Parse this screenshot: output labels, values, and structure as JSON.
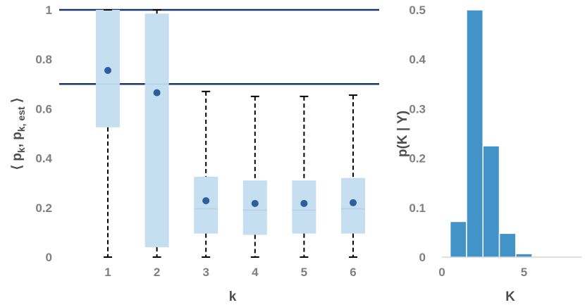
{
  "chart_data": [
    {
      "type": "box",
      "xlabel": "k",
      "ylabel_parts": [
        "⟨ p",
        "k",
        ", p",
        "k, est",
        " ⟩"
      ],
      "categories": [
        "1",
        "2",
        "3",
        "4",
        "5",
        "6"
      ],
      "ylim": [
        0,
        1.0
      ],
      "yticks": [
        0,
        0.2,
        0.4,
        0.6,
        0.8,
        1
      ],
      "ytick_labels": [
        "0",
        "0.2",
        "0.4",
        "0.6",
        "0.8",
        "1"
      ],
      "reference_lines": [
        1.0,
        0.7
      ],
      "boxes": [
        {
          "k": "1",
          "whisker_low": 0.0,
          "q1": 0.525,
          "median": 0.7,
          "q3": 1.0,
          "whisker_high": 1.0,
          "mean": 0.755
        },
        {
          "k": "2",
          "whisker_low": 0.0,
          "q1": 0.04,
          "median": 0.7,
          "q3": 0.985,
          "whisker_high": 1.0,
          "mean": 0.665
        },
        {
          "k": "3",
          "whisker_low": 0.0,
          "q1": 0.095,
          "median": 0.195,
          "q3": 0.325,
          "whisker_high": 0.67,
          "mean": 0.228
        },
        {
          "k": "4",
          "whisker_low": 0.0,
          "q1": 0.09,
          "median": 0.19,
          "q3": 0.31,
          "whisker_high": 0.65,
          "mean": 0.217
        },
        {
          "k": "5",
          "whisker_low": 0.0,
          "q1": 0.095,
          "median": 0.19,
          "q3": 0.31,
          "whisker_high": 0.65,
          "mean": 0.217
        },
        {
          "k": "6",
          "whisker_low": 0.0,
          "q1": 0.095,
          "median": 0.195,
          "q3": 0.32,
          "whisker_high": 0.655,
          "mean": 0.22
        }
      ],
      "colors": {
        "box": "#c5def0",
        "mean": "#2c5f9e",
        "reference": "#1a3768",
        "whisker": "#000000"
      }
    },
    {
      "type": "bar",
      "xlabel": "K",
      "ylabel": "p(K | Y)",
      "categories": [
        1,
        2,
        3,
        4,
        5,
        6,
        7
      ],
      "values": [
        0.072,
        0.5,
        0.225,
        0.048,
        0.007,
        0.001,
        0.0005
      ],
      "xlim": [
        0,
        8.5
      ],
      "xticks": [
        0,
        5
      ],
      "xtick_labels": [
        "0",
        "5"
      ],
      "ylim": [
        0,
        0.5
      ],
      "yticks": [
        0,
        0.1,
        0.2,
        0.3,
        0.4,
        0.5
      ],
      "ytick_labels": [
        "0",
        "0.1",
        "0.2",
        "0.3",
        "0.4",
        "0.5"
      ],
      "colors": {
        "bar": "#4393c8",
        "bar_edge": "#ffffff"
      }
    }
  ]
}
